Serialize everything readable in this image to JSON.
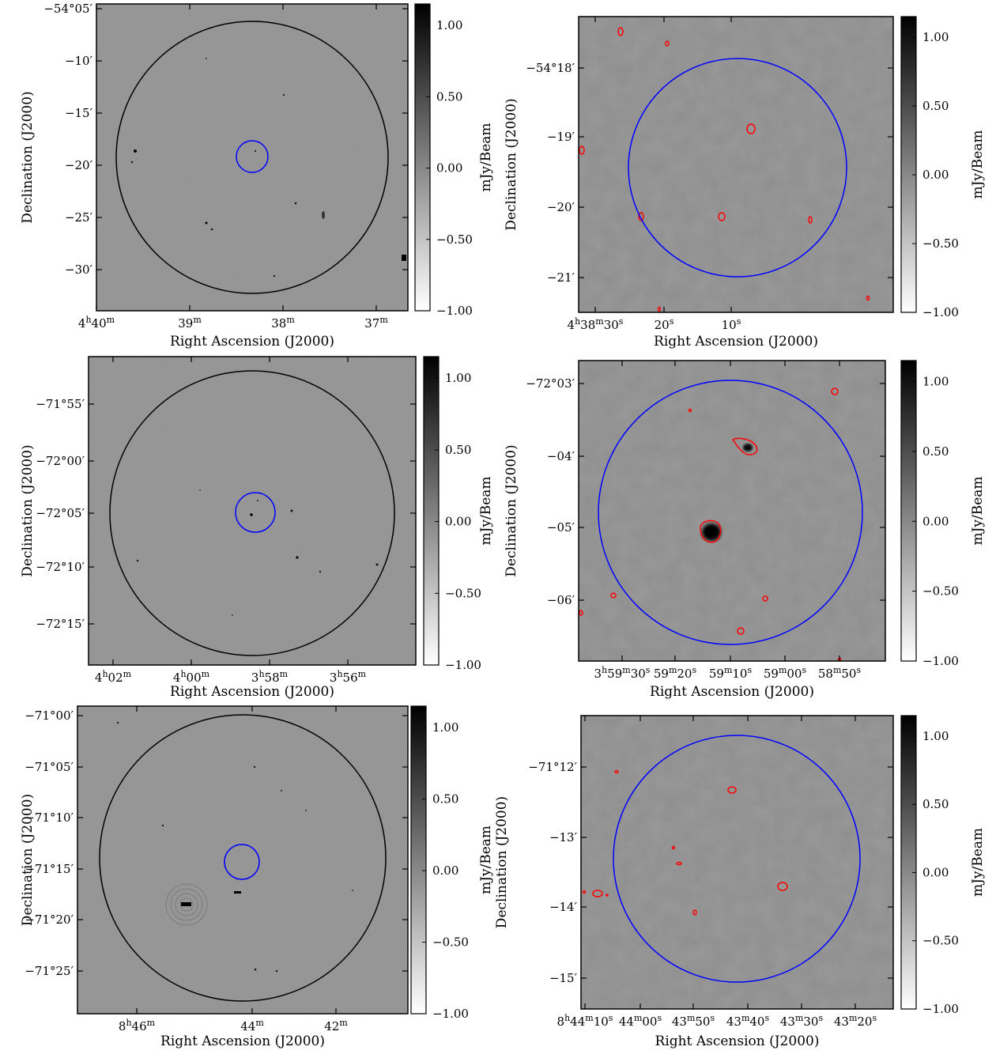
{
  "colors": {
    "field_circle": "#000000",
    "zoom_circle": "#0000ff",
    "contour": "#ff0000",
    "background_gray": "#8e8e8e"
  },
  "colorbar": {
    "label": "mJy/Beam",
    "ticks": [
      "1.00",
      "0.50",
      "0.00",
      "−0.50",
      "−1.00"
    ],
    "range": [
      -1.0,
      1.15
    ]
  },
  "chart_data": [
    {
      "type": "heatmap",
      "panel": "field-1",
      "xlabel": "Right Ascension (J2000)",
      "ylabel": "Declination (J2000)",
      "xticks": [
        {
          "h": "4",
          "m": "40",
          "s": "",
          "sec": ""
        },
        {
          "h": "",
          "m": "39",
          "s": "",
          "sec": ""
        },
        {
          "h": "",
          "m": "38",
          "s": "",
          "sec": ""
        },
        {
          "h": "",
          "m": "37",
          "s": "",
          "sec": ""
        }
      ],
      "yticks": [
        "−54°05′",
        "−10′",
        "−15′",
        "−20′",
        "−25′",
        "−30′"
      ],
      "colorbar_label": "mJy/Beam"
    },
    {
      "type": "heatmap",
      "panel": "zoom-1",
      "xlabel": "Right Ascension (J2000)",
      "ylabel": "Declination (J2000)",
      "xticks": [
        {
          "h": "4",
          "m": "38",
          "s": "30",
          "sec": ""
        },
        {
          "h": "",
          "m": "",
          "s": "20",
          "sec": ""
        },
        {
          "h": "",
          "m": "",
          "s": "10",
          "sec": ""
        }
      ],
      "yticks": [
        "−54°18′",
        "−19′",
        "−20′",
        "−21′"
      ],
      "colorbar_label": "mJy/Beam"
    },
    {
      "type": "heatmap",
      "panel": "field-2",
      "xlabel": "Right Ascension (J2000)",
      "ylabel": "Declination (J2000)",
      "xticks": [
        {
          "h": "4",
          "m": "02",
          "s": "",
          "sec": ""
        },
        {
          "h": "4",
          "m": "00",
          "s": "",
          "sec": ""
        },
        {
          "h": "3",
          "m": "58",
          "s": "",
          "sec": ""
        },
        {
          "h": "3",
          "m": "56",
          "s": "",
          "sec": ""
        }
      ],
      "yticks": [
        "−71°55′",
        "−72°00′",
        "−72°05′",
        "−72°10′",
        "−72°15′"
      ],
      "colorbar_label": "mJy/Beam"
    },
    {
      "type": "heatmap",
      "panel": "zoom-2",
      "xlabel": "Right Ascension (J2000)",
      "ylabel": "Declination (J2000)",
      "xticks": [
        {
          "h": "3",
          "m": "59",
          "s": "30",
          "sec": ""
        },
        {
          "h": "",
          "m": "59",
          "s": "20",
          "sec": ""
        },
        {
          "h": "",
          "m": "59",
          "s": "10",
          "sec": ""
        },
        {
          "h": "",
          "m": "59",
          "s": "00",
          "sec": ""
        },
        {
          "h": "",
          "m": "58",
          "s": "50",
          "sec": ""
        }
      ],
      "yticks": [
        "−72°03′",
        "−04′",
        "−05′",
        "−06′"
      ],
      "colorbar_label": "mJy/Beam"
    },
    {
      "type": "heatmap",
      "panel": "field-3",
      "xlabel": "Right Ascension (J2000)",
      "ylabel": "Declination (J2000)",
      "xticks": [
        {
          "h": "8",
          "m": "46",
          "s": "",
          "sec": ""
        },
        {
          "h": "",
          "m": "44",
          "s": "",
          "sec": ""
        },
        {
          "h": "",
          "m": "42",
          "s": "",
          "sec": ""
        }
      ],
      "yticks": [
        "−71°00′",
        "−71°05′",
        "−71°10′",
        "−71°15′",
        "−71°20′",
        "−71°25′"
      ],
      "colorbar_label": "mJy/Beam"
    },
    {
      "type": "heatmap",
      "panel": "zoom-3",
      "xlabel": "Right Ascension (J2000)",
      "ylabel": "Declination (J2000)",
      "xticks": [
        {
          "h": "8",
          "m": "44",
          "s": "10",
          "sec": ""
        },
        {
          "h": "",
          "m": "44",
          "s": "00",
          "sec": ""
        },
        {
          "h": "",
          "m": "43",
          "s": "50",
          "sec": ""
        },
        {
          "h": "",
          "m": "43",
          "s": "40",
          "sec": ""
        },
        {
          "h": "",
          "m": "43",
          "s": "30",
          "sec": ""
        },
        {
          "h": "",
          "m": "43",
          "s": "20",
          "sec": ""
        }
      ],
      "yticks": [
        "−71°12′",
        "−13′",
        "−14′",
        "−15′"
      ],
      "colorbar_label": "mJy/Beam"
    }
  ]
}
